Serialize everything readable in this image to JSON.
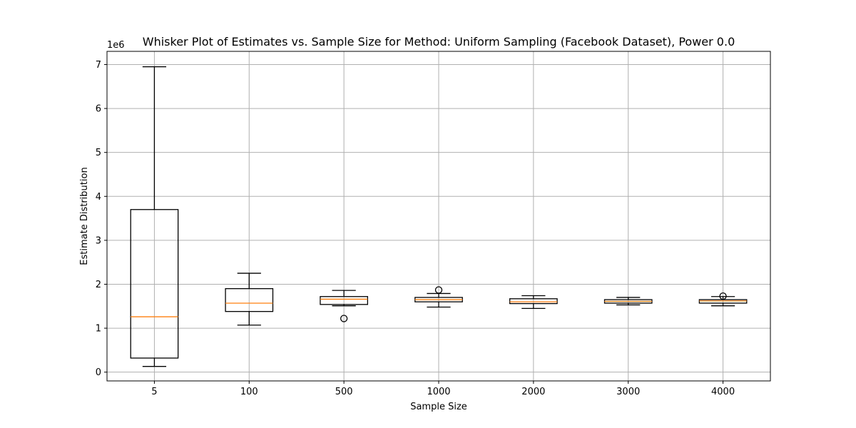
{
  "chart_data": {
    "type": "box",
    "title": "Whisker Plot of Estimates vs. Sample Size for Method: Uniform Sampling (Facebook Dataset), Power 0.0",
    "xlabel": "Sample Size",
    "ylabel": "Estimate Distribution",
    "y_scale_label": "1e6",
    "y_scale_factor": 1000000,
    "ylim": [
      -200000,
      7300000
    ],
    "yticks": [
      0,
      1000000,
      2000000,
      3000000,
      4000000,
      5000000,
      6000000,
      7000000
    ],
    "ytick_labels": [
      "0",
      "1",
      "2",
      "3",
      "4",
      "5",
      "6",
      "7"
    ],
    "grid": true,
    "colors": {
      "box": "#000000",
      "median": "#ff7f0e",
      "grid": "#b0b0b0"
    },
    "categories": [
      "5",
      "100",
      "500",
      "1000",
      "2000",
      "3000",
      "4000"
    ],
    "boxes": [
      {
        "category": "5",
        "whisker_low": 130000,
        "q1": 320000,
        "median": 1260000,
        "q3": 3700000,
        "whisker_high": 6950000,
        "outliers": []
      },
      {
        "category": "100",
        "whisker_low": 1070000,
        "q1": 1380000,
        "median": 1570000,
        "q3": 1900000,
        "whisker_high": 2250000,
        "outliers": []
      },
      {
        "category": "500",
        "whisker_low": 1510000,
        "q1": 1540000,
        "median": 1660000,
        "q3": 1720000,
        "whisker_high": 1860000,
        "outliers": [
          1220000
        ]
      },
      {
        "category": "1000",
        "whisker_low": 1480000,
        "q1": 1600000,
        "median": 1650000,
        "q3": 1700000,
        "whisker_high": 1790000,
        "outliers": [
          1870000
        ]
      },
      {
        "category": "2000",
        "whisker_low": 1450000,
        "q1": 1560000,
        "median": 1600000,
        "q3": 1670000,
        "whisker_high": 1740000,
        "outliers": []
      },
      {
        "category": "3000",
        "whisker_low": 1530000,
        "q1": 1570000,
        "median": 1610000,
        "q3": 1650000,
        "whisker_high": 1700000,
        "outliers": []
      },
      {
        "category": "4000",
        "whisker_low": 1510000,
        "q1": 1570000,
        "median": 1620000,
        "q3": 1650000,
        "whisker_high": 1720000,
        "outliers": [
          1730000
        ]
      }
    ]
  }
}
